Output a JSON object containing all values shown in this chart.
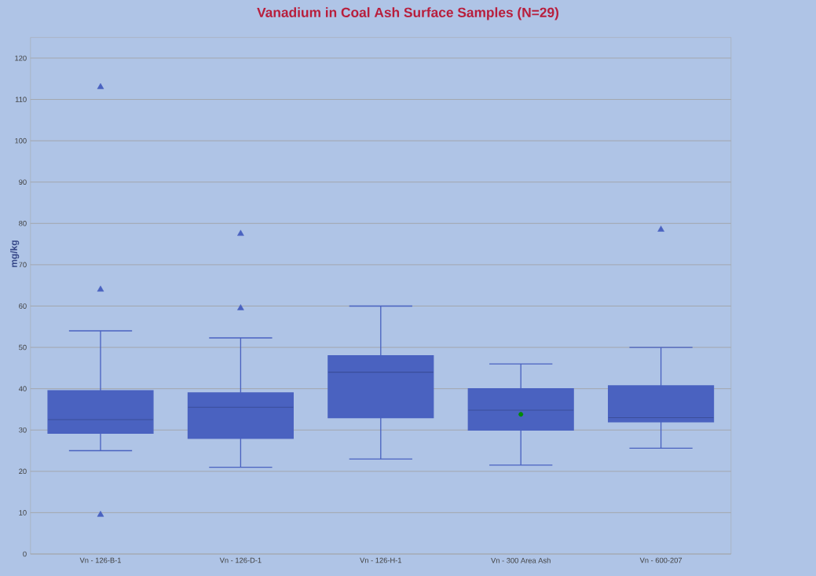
{
  "chart_data": {
    "type": "box",
    "title": "Vanadium in Coal Ash Surface Samples (N=29)",
    "ylabel": "mg/kg",
    "categories": [
      "Vn - 126-B-1",
      "Vn - 126-D-1",
      "Vn - 126-H-1",
      "Vn - 300 Area Ash",
      "Vn - 600-207"
    ],
    "boxes": [
      {
        "low": 25,
        "q1": 29.2,
        "median": 32.5,
        "q3": 39.5,
        "high": 54,
        "outliers": [
          113,
          64,
          9.5
        ]
      },
      {
        "low": 21,
        "q1": 28,
        "median": 35.5,
        "q3": 39,
        "high": 52.3,
        "outliers": [
          77.5,
          59.5
        ]
      },
      {
        "low": 23,
        "q1": 33,
        "median": 44,
        "q3": 48,
        "high": 60
      },
      {
        "low": 21.5,
        "q1": 30,
        "median": 34.8,
        "q3": 40,
        "high": 46,
        "mean": 33.8
      },
      {
        "low": 25.6,
        "q1": 32,
        "median": 33,
        "q3": 40.7,
        "high": 50,
        "outliers": [
          78.5
        ]
      }
    ],
    "color": "#4a62c0",
    "marker": "triangle",
    "grid": "y",
    "ylim": [
      0,
      125
    ],
    "yticks": [
      0,
      10,
      20,
      30,
      40,
      50,
      60,
      70,
      80,
      90,
      100,
      110,
      120
    ]
  }
}
